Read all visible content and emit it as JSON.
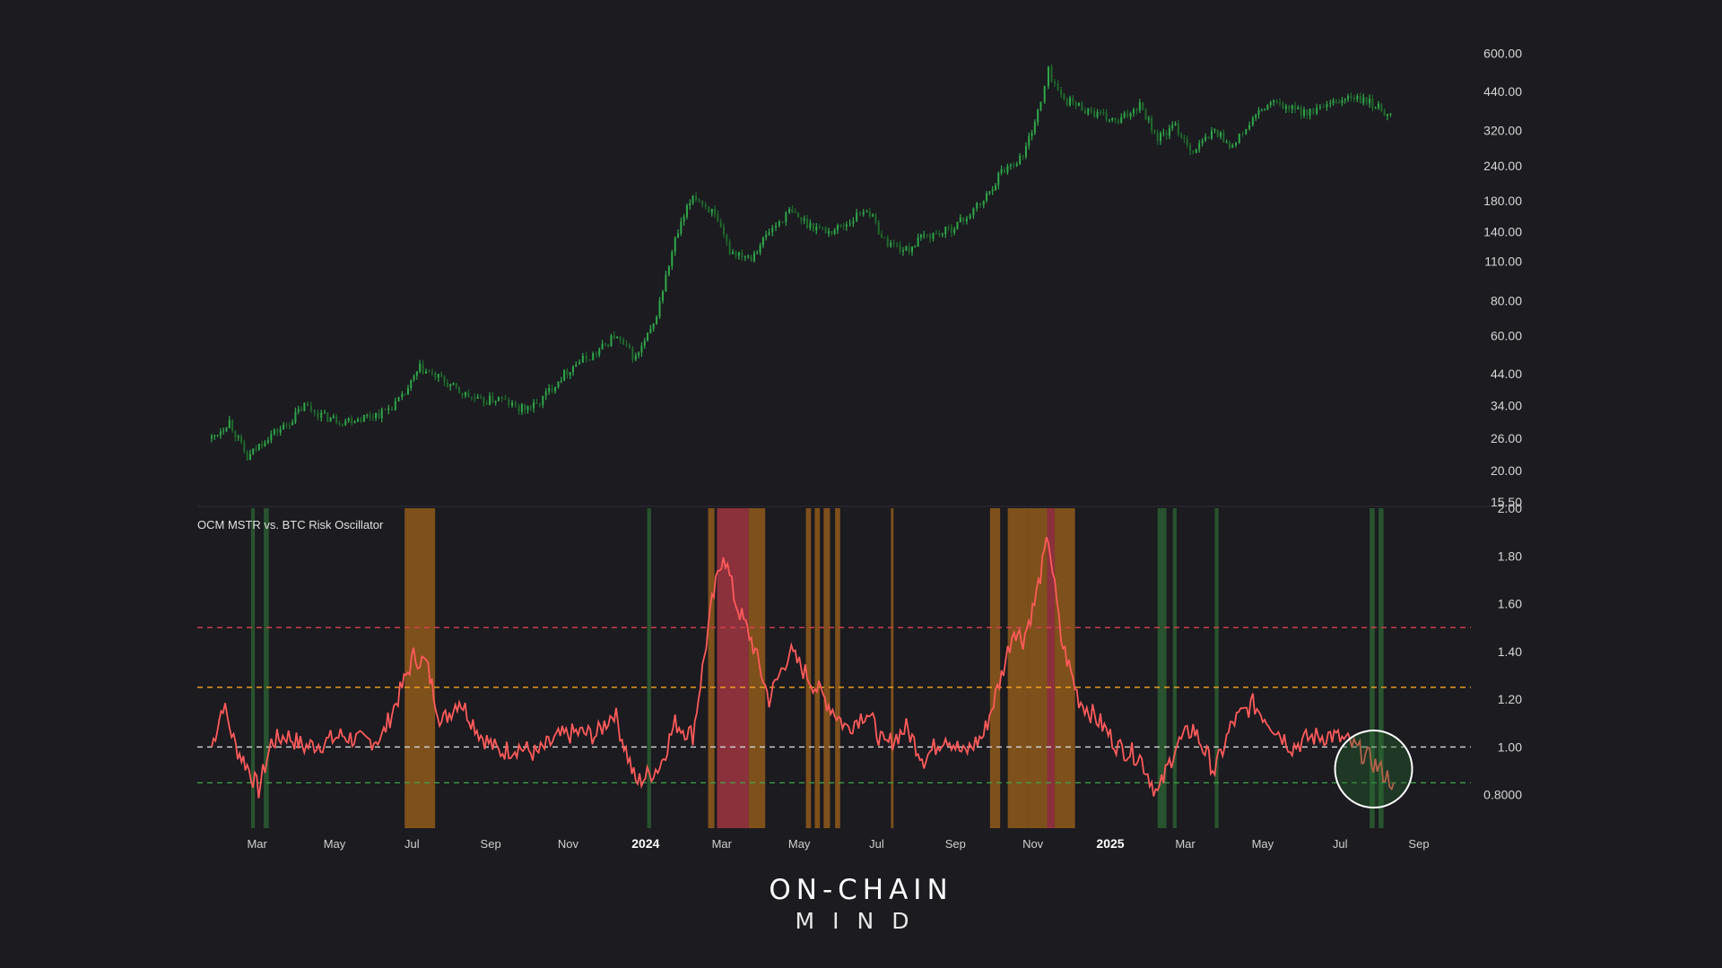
{
  "chart_data": [
    {
      "type": "candlestick",
      "title": "",
      "y_scale": "log",
      "y_tick_labels": [
        "15.50",
        "20.00",
        "26.00",
        "34.00",
        "44.00",
        "60.00",
        "80.00",
        "110.00",
        "140.00",
        "180.00",
        "240.00",
        "320.00",
        "440.00",
        "600.00"
      ],
      "y_tick_values": [
        15.5,
        20,
        26,
        34,
        44,
        60,
        80,
        110,
        140,
        180,
        240,
        320,
        440,
        600
      ],
      "ylim": [
        15.5,
        800
      ],
      "candle_color": "#2e8b3e",
      "series": [
        {
          "x": [
            "2023-02-01",
            "2023-02-15",
            "2023-03-01",
            "2023-03-15",
            "2023-04-01",
            "2023-04-15",
            "2023-05-01",
            "2023-05-15",
            "2023-06-01",
            "2023-06-15",
            "2023-07-01",
            "2023-07-15",
            "2023-08-01",
            "2023-08-15",
            "2023-09-01",
            "2023-09-15",
            "2023-10-01",
            "2023-10-15",
            "2023-11-01",
            "2023-11-15",
            "2023-12-01",
            "2023-12-15",
            "2024-01-01",
            "2024-01-15",
            "2024-02-01",
            "2024-02-15",
            "2024-03-01",
            "2024-03-15",
            "2024-04-01",
            "2024-04-15",
            "2024-05-01",
            "2024-05-15",
            "2024-06-01",
            "2024-06-15",
            "2024-07-01",
            "2024-07-15",
            "2024-08-01",
            "2024-08-15",
            "2024-09-01",
            "2024-09-15",
            "2024-10-01",
            "2024-10-15",
            "2024-11-01",
            "2024-11-15",
            "2024-11-21",
            "2024-12-01",
            "2024-12-15",
            "2025-01-01",
            "2025-01-15",
            "2025-02-01",
            "2025-02-15",
            "2025-03-01",
            "2025-03-15",
            "2025-04-01",
            "2025-04-15",
            "2025-05-01",
            "2025-05-15",
            "2025-06-01",
            "2025-06-15",
            "2025-07-01",
            "2025-07-15",
            "2025-08-01",
            "2025-08-15",
            "2025-08-20"
          ],
          "y": [
            26,
            30,
            22,
            26,
            29,
            34,
            31,
            30,
            31,
            32,
            36,
            46,
            42,
            38,
            35,
            36,
            33,
            34,
            42,
            48,
            52,
            60,
            50,
            65,
            130,
            190,
            165,
            120,
            115,
            140,
            165,
            150,
            140,
            150,
            170,
            130,
            120,
            135,
            140,
            155,
            180,
            230,
            260,
            400,
            520,
            420,
            390,
            360,
            340,
            400,
            300,
            330,
            270,
            320,
            280,
            350,
            400,
            380,
            370,
            390,
            420,
            400,
            370,
            350
          ]
        }
      ]
    },
    {
      "type": "line",
      "title": "OCM MSTR vs. BTC Risk Oscillator",
      "y_tick_labels": [
        "0.8000",
        "1.00",
        "1.20",
        "1.40",
        "1.60",
        "1.80",
        "2.00"
      ],
      "y_tick_values": [
        0.8,
        1.0,
        1.2,
        1.4,
        1.6,
        1.8,
        2.0
      ],
      "ylim": [
        0.66,
        2.0
      ],
      "line_color": "#ff5a5a",
      "reference_lines": [
        {
          "y": 1.5,
          "color": "#d9414d"
        },
        {
          "y": 1.25,
          "color": "#f5a623"
        },
        {
          "y": 1.0,
          "color": "#d8d8d8"
        },
        {
          "y": 0.85,
          "color": "#3fa54a"
        }
      ],
      "series": [
        {
          "x": [
            "2023-02-01",
            "2023-02-10",
            "2023-02-20",
            "2023-03-01",
            "2023-03-10",
            "2023-03-20",
            "2023-04-01",
            "2023-04-15",
            "2023-05-01",
            "2023-05-15",
            "2023-06-01",
            "2023-06-15",
            "2023-07-01",
            "2023-07-10",
            "2023-07-20",
            "2023-08-01",
            "2023-08-15",
            "2023-09-01",
            "2023-09-15",
            "2023-10-01",
            "2023-10-15",
            "2023-11-01",
            "2023-11-15",
            "2023-12-01",
            "2023-12-15",
            "2024-01-01",
            "2024-01-10",
            "2024-01-20",
            "2024-02-01",
            "2024-02-15",
            "2024-03-01",
            "2024-03-10",
            "2024-03-20",
            "2024-04-01",
            "2024-04-15",
            "2024-05-01",
            "2024-05-15",
            "2024-06-01",
            "2024-06-15",
            "2024-07-01",
            "2024-07-15",
            "2024-08-01",
            "2024-08-15",
            "2024-09-01",
            "2024-09-15",
            "2024-10-01",
            "2024-10-15",
            "2024-10-25",
            "2024-11-01",
            "2024-11-10",
            "2024-11-21",
            "2024-12-01",
            "2024-12-15",
            "2025-01-01",
            "2025-01-15",
            "2025-02-01",
            "2025-02-15",
            "2025-03-01",
            "2025-03-15",
            "2025-04-01",
            "2025-04-15",
            "2025-05-01",
            "2025-05-15",
            "2025-06-01",
            "2025-06-15",
            "2025-07-01",
            "2025-07-15",
            "2025-08-01",
            "2025-08-10",
            "2025-08-20"
          ],
          "y": [
            1.0,
            1.18,
            1.0,
            0.92,
            0.82,
            1.02,
            1.05,
            1.0,
            1.02,
            1.05,
            1.02,
            1.04,
            1.25,
            1.38,
            1.35,
            1.1,
            1.2,
            1.05,
            0.98,
            1.0,
            0.97,
            1.04,
            1.06,
            1.05,
            1.15,
            0.85,
            0.88,
            0.92,
            1.1,
            1.05,
            1.6,
            1.82,
            1.6,
            1.45,
            1.2,
            1.4,
            1.3,
            1.18,
            1.08,
            1.15,
            1.0,
            1.08,
            0.95,
            1.05,
            0.97,
            1.05,
            1.3,
            1.5,
            1.45,
            1.6,
            1.88,
            1.45,
            1.2,
            1.1,
            1.0,
            0.96,
            0.8,
            1.0,
            1.08,
            0.9,
            1.1,
            1.18,
            1.1,
            1.0,
            1.04,
            1.05,
            1.02,
            0.95,
            0.9,
            0.85
          ]
        }
      ],
      "zones": [
        {
          "from": "2023-03-04",
          "to": "2023-03-07",
          "color": "green"
        },
        {
          "from": "2023-03-14",
          "to": "2023-03-18",
          "color": "green"
        },
        {
          "from": "2023-07-03",
          "to": "2023-07-27",
          "color": "orange"
        },
        {
          "from": "2024-01-10",
          "to": "2024-01-13",
          "color": "green"
        },
        {
          "from": "2024-02-27",
          "to": "2024-03-03",
          "color": "orange"
        },
        {
          "from": "2024-03-05",
          "to": "2024-03-30",
          "color": "red"
        },
        {
          "from": "2024-03-30",
          "to": "2024-04-12",
          "color": "orange"
        },
        {
          "from": "2024-05-14",
          "to": "2024-05-18",
          "color": "orange"
        },
        {
          "from": "2024-05-21",
          "to": "2024-05-25",
          "color": "orange"
        },
        {
          "from": "2024-05-28",
          "to": "2024-06-02",
          "color": "orange"
        },
        {
          "from": "2024-06-06",
          "to": "2024-06-10",
          "color": "orange"
        },
        {
          "from": "2024-07-20",
          "to": "2024-07-22",
          "color": "orange"
        },
        {
          "from": "2024-10-06",
          "to": "2024-10-14",
          "color": "orange"
        },
        {
          "from": "2024-10-20",
          "to": "2024-11-05",
          "color": "orange"
        },
        {
          "from": "2024-11-05",
          "to": "2024-11-20",
          "color": "orange"
        },
        {
          "from": "2024-11-20",
          "to": "2024-11-26",
          "color": "red"
        },
        {
          "from": "2024-11-26",
          "to": "2024-12-12",
          "color": "orange"
        },
        {
          "from": "2025-02-15",
          "to": "2025-02-22",
          "color": "green"
        },
        {
          "from": "2025-02-27",
          "to": "2025-03-02",
          "color": "green"
        },
        {
          "from": "2025-04-01",
          "to": "2025-04-04",
          "color": "green"
        },
        {
          "from": "2025-08-01",
          "to": "2025-08-05",
          "color": "green"
        },
        {
          "from": "2025-08-08",
          "to": "2025-08-12",
          "color": "green"
        }
      ]
    }
  ],
  "x_axis": {
    "ticks": [
      {
        "label": "Mar",
        "date": "2023-03-01",
        "bold": false
      },
      {
        "label": "May",
        "date": "2023-05-01",
        "bold": false
      },
      {
        "label": "Jul",
        "date": "2023-07-01",
        "bold": false
      },
      {
        "label": "Sep",
        "date": "2023-09-01",
        "bold": false
      },
      {
        "label": "Nov",
        "date": "2023-11-01",
        "bold": false
      },
      {
        "label": "2024",
        "date": "2024-01-01",
        "bold": true
      },
      {
        "label": "Mar",
        "date": "2024-03-01",
        "bold": false
      },
      {
        "label": "May",
        "date": "2024-05-01",
        "bold": false
      },
      {
        "label": "Jul",
        "date": "2024-07-01",
        "bold": false
      },
      {
        "label": "Sep",
        "date": "2024-09-01",
        "bold": false
      },
      {
        "label": "Nov",
        "date": "2024-11-01",
        "bold": false
      },
      {
        "label": "2025",
        "date": "2025-01-01",
        "bold": true
      },
      {
        "label": "Mar",
        "date": "2025-03-01",
        "bold": false
      },
      {
        "label": "May",
        "date": "2025-05-01",
        "bold": false
      },
      {
        "label": "Jul",
        "date": "2025-07-01",
        "bold": false
      },
      {
        "label": "Sep",
        "date": "2025-09-01",
        "bold": false
      }
    ]
  },
  "highlight": {
    "date": "2025-08-02",
    "value": 0.9,
    "color": "#ffffff"
  },
  "logo": {
    "line1": "ON-CHAIN",
    "line2": "MIND"
  },
  "colors": {
    "background": "#1b1b20",
    "green_zone": "#2f6a35",
    "orange_zone": "#a8661a",
    "red_zone": "#b23a45"
  }
}
